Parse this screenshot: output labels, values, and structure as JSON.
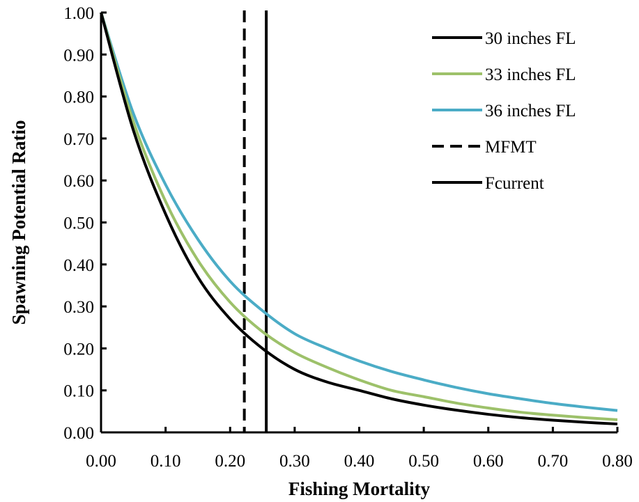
{
  "chart_data": {
    "type": "line",
    "title": "",
    "xlabel": "Fishing Mortality",
    "ylabel": "Spawning Potential Ratio",
    "xlim": [
      0,
      0.8
    ],
    "ylim": [
      0,
      1.0
    ],
    "xticks": [
      "0.00",
      "0.10",
      "0.20",
      "0.30",
      "0.40",
      "0.50",
      "0.60",
      "0.70",
      "0.80"
    ],
    "yticks": [
      "0.00",
      "0.10",
      "0.20",
      "0.30",
      "0.40",
      "0.50",
      "0.60",
      "0.70",
      "0.80",
      "0.90",
      "1.00"
    ],
    "grid": false,
    "legend_position": "top-right",
    "x": [
      0.0,
      0.05,
      0.1,
      0.15,
      0.2,
      0.25,
      0.3,
      0.35,
      0.4,
      0.45,
      0.5,
      0.55,
      0.6,
      0.65,
      0.7,
      0.75,
      0.8
    ],
    "series": [
      {
        "name": "30 inches FL",
        "color": "#000000",
        "style": "solid",
        "values": [
          1.0,
          0.72,
          0.52,
          0.37,
          0.27,
          0.2,
          0.15,
          0.12,
          0.1,
          0.08,
          0.065,
          0.053,
          0.043,
          0.035,
          0.029,
          0.024,
          0.02
        ]
      },
      {
        "name": "33 inches FL",
        "color": "#9dc16a",
        "style": "solid",
        "values": [
          1.0,
          0.74,
          0.55,
          0.41,
          0.31,
          0.24,
          0.19,
          0.155,
          0.125,
          0.1,
          0.085,
          0.07,
          0.058,
          0.048,
          0.041,
          0.035,
          0.03
        ]
      },
      {
        "name": "36 inches FL",
        "color": "#4bacc6",
        "style": "solid",
        "values": [
          1.0,
          0.76,
          0.59,
          0.46,
          0.36,
          0.29,
          0.235,
          0.2,
          0.17,
          0.145,
          0.125,
          0.107,
          0.092,
          0.08,
          0.069,
          0.06,
          0.052
        ]
      }
    ],
    "reference_lines": [
      {
        "name": "MFMT",
        "x": 0.222,
        "style": "dashed",
        "color": "#000000"
      },
      {
        "name": "Fcurrent",
        "x": 0.256,
        "style": "solid",
        "color": "#000000"
      }
    ]
  }
}
